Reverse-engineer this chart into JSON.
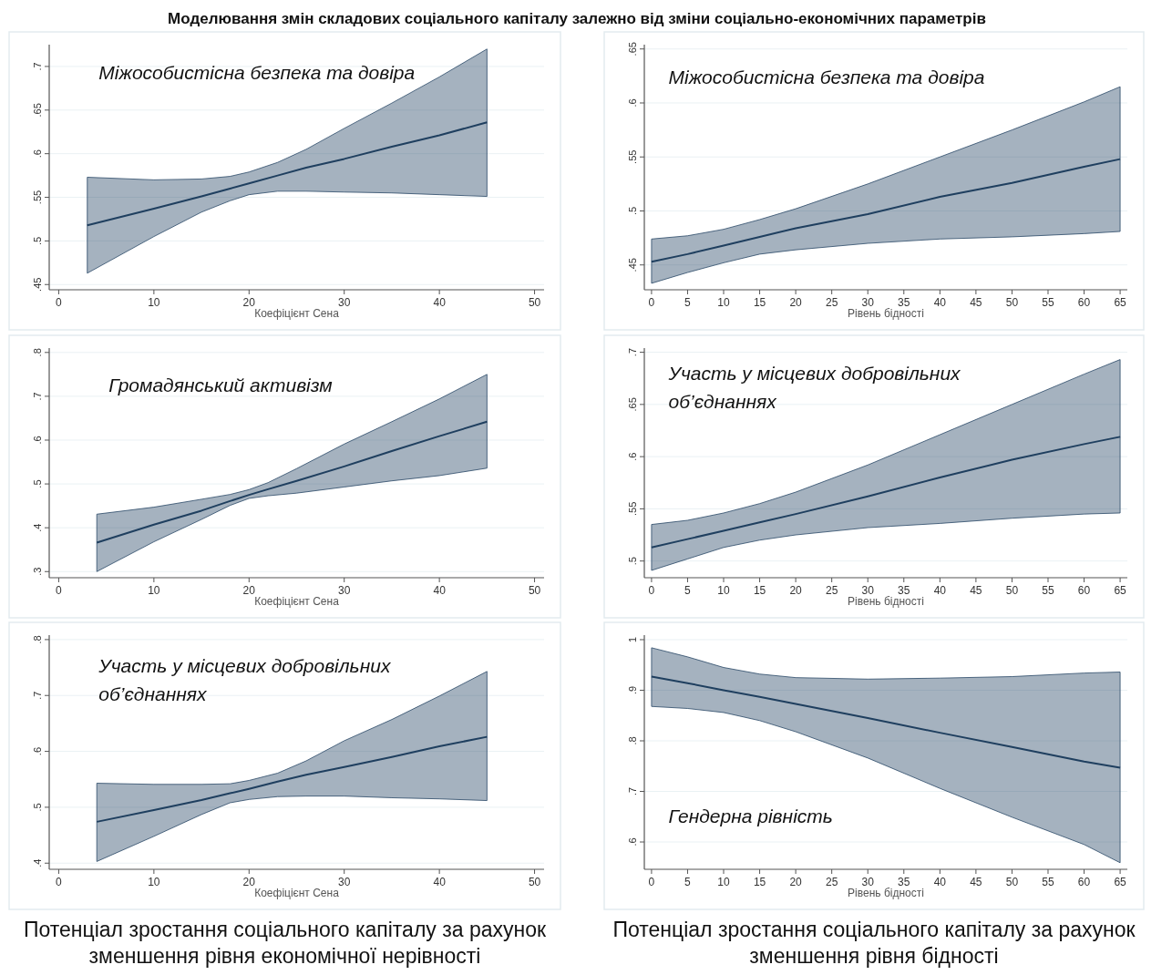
{
  "chart_data": [
    {
      "type": "line",
      "title": "Моделювання змін складових соціального капіталу залежно від зміни соціально-економічних параметрів",
      "xlabel": "Коефіцієнт Сена",
      "xlim": [
        -1,
        51
      ],
      "xticks": [
        0,
        10,
        20,
        30,
        40,
        50
      ],
      "ylim": [
        0.444,
        0.725
      ],
      "yticks": [
        {
          "value": 0.45,
          "label": ".45"
        },
        {
          "value": 0.5,
          "label": ".5"
        },
        {
          "value": 0.55,
          "label": ".55"
        },
        {
          "value": 0.6,
          "label": ".6"
        },
        {
          "value": 0.65,
          "label": ".65"
        },
        {
          "value": 0.7,
          "label": ".7"
        }
      ],
      "grid": "y",
      "annotations": [
        "Міжособистісна безпека та довіра"
      ],
      "series": [
        {
          "color": "#1f3f5f",
          "x": [
            3,
            10,
            15,
            18,
            20,
            23,
            26,
            30,
            35,
            40,
            45
          ],
          "values": [
            0.518,
            0.537,
            0.551,
            0.56,
            0.566,
            0.575,
            0.584,
            0.594,
            0.608,
            0.621,
            0.636
          ],
          "upper": [
            0.573,
            0.57,
            0.571,
            0.574,
            0.579,
            0.59,
            0.605,
            0.629,
            0.658,
            0.688,
            0.72
          ],
          "lower": [
            0.463,
            0.505,
            0.533,
            0.546,
            0.553,
            0.557,
            0.557,
            0.556,
            0.555,
            0.553,
            0.551
          ]
        }
      ]
    },
    {
      "type": "line",
      "xlabel": "Рівень бідності",
      "xlim": [
        -1,
        66
      ],
      "xticks": [
        0,
        5,
        10,
        15,
        20,
        25,
        30,
        35,
        40,
        45,
        50,
        55,
        60,
        65
      ],
      "ylim": [
        0.427,
        0.654
      ],
      "yticks": [
        {
          "value": 0.45,
          "label": ".45"
        },
        {
          "value": 0.5,
          "label": ".5"
        },
        {
          "value": 0.55,
          "label": ".55"
        },
        {
          "value": 0.6,
          "label": ".6"
        },
        {
          "value": 0.65,
          "label": ".65"
        }
      ],
      "grid": "y",
      "annotations": [
        "Міжособистісна безпека та довіра"
      ],
      "series": [
        {
          "color": "#1f3f5f",
          "x": [
            0,
            5,
            10,
            15,
            20,
            30,
            40,
            50,
            60,
            65
          ],
          "values": [
            0.453,
            0.46,
            0.468,
            0.476,
            0.484,
            0.497,
            0.513,
            0.526,
            0.541,
            0.548
          ],
          "upper": [
            0.474,
            0.477,
            0.483,
            0.492,
            0.502,
            0.525,
            0.55,
            0.575,
            0.601,
            0.615
          ],
          "lower": [
            0.433,
            0.443,
            0.452,
            0.46,
            0.464,
            0.47,
            0.474,
            0.476,
            0.479,
            0.481
          ]
        }
      ]
    },
    {
      "type": "line",
      "xlabel": "Коефіцієнт Сена",
      "xlim": [
        -1,
        51
      ],
      "xticks": [
        0,
        10,
        20,
        30,
        40,
        50
      ],
      "ylim": [
        0.286,
        0.81
      ],
      "yticks": [
        {
          "value": 0.3,
          "label": ".3"
        },
        {
          "value": 0.4,
          "label": ".4"
        },
        {
          "value": 0.5,
          "label": ".5"
        },
        {
          "value": 0.6,
          "label": ".6"
        },
        {
          "value": 0.7,
          "label": ".7"
        },
        {
          "value": 0.8,
          "label": ".8"
        }
      ],
      "grid": "y",
      "annotations": [
        "Громадянський активізм"
      ],
      "series": [
        {
          "color": "#1f3f5f",
          "x": [
            4,
            10,
            15,
            18,
            20,
            22,
            25,
            30,
            35,
            40,
            45
          ],
          "values": [
            0.366,
            0.407,
            0.439,
            0.461,
            0.475,
            0.488,
            0.507,
            0.54,
            0.575,
            0.609,
            0.642
          ],
          "upper": [
            0.431,
            0.447,
            0.465,
            0.476,
            0.487,
            0.503,
            0.535,
            0.591,
            0.642,
            0.694,
            0.75
          ],
          "lower": [
            0.3,
            0.368,
            0.419,
            0.451,
            0.467,
            0.473,
            0.479,
            0.493,
            0.507,
            0.519,
            0.536
          ]
        }
      ]
    },
    {
      "type": "line",
      "xlabel": "Рівень бідності",
      "xlim": [
        -1,
        66
      ],
      "xticks": [
        0,
        5,
        10,
        15,
        20,
        25,
        30,
        35,
        40,
        45,
        50,
        55,
        60,
        65
      ],
      "ylim": [
        0.484,
        0.704
      ],
      "yticks": [
        {
          "value": 0.5,
          "label": ".5"
        },
        {
          "value": 0.55,
          "label": ".55"
        },
        {
          "value": 0.6,
          "label": ".6"
        },
        {
          "value": 0.65,
          "label": ".65"
        },
        {
          "value": 0.7,
          "label": ".7"
        }
      ],
      "grid": "y",
      "annotations": [
        "Участь у місцевих добровільних об’єднаннях"
      ],
      "series": [
        {
          "color": "#1f3f5f",
          "x": [
            0,
            5,
            10,
            15,
            20,
            30,
            40,
            50,
            60,
            65
          ],
          "values": [
            0.513,
            0.521,
            0.529,
            0.537,
            0.545,
            0.562,
            0.58,
            0.597,
            0.612,
            0.619
          ],
          "upper": [
            0.535,
            0.539,
            0.546,
            0.555,
            0.566,
            0.592,
            0.621,
            0.65,
            0.679,
            0.693
          ],
          "lower": [
            0.491,
            0.502,
            0.513,
            0.52,
            0.525,
            0.532,
            0.536,
            0.541,
            0.545,
            0.546
          ]
        }
      ]
    },
    {
      "type": "line",
      "xlabel": "Коефіцієнт Сена",
      "xlim": [
        -1,
        51
      ],
      "xticks": [
        0,
        10,
        20,
        30,
        40,
        50
      ],
      "ylim": [
        0.389,
        0.808
      ],
      "yticks": [
        {
          "value": 0.4,
          "label": ".4"
        },
        {
          "value": 0.5,
          "label": ".5"
        },
        {
          "value": 0.6,
          "label": ".6"
        },
        {
          "value": 0.7,
          "label": ".7"
        },
        {
          "value": 0.8,
          "label": ".8"
        }
      ],
      "grid": "y",
      "annotations": [
        "Участь у місцевих добровільних об’єднаннях",
        "Потенціал зростання соціального капіталу за рахунок зменшення рівня економічної нерівності"
      ],
      "series": [
        {
          "color": "#1f3f5f",
          "x": [
            4,
            10,
            15,
            18,
            20,
            23,
            26,
            30,
            35,
            40,
            45
          ],
          "values": [
            0.474,
            0.495,
            0.513,
            0.525,
            0.533,
            0.546,
            0.558,
            0.572,
            0.59,
            0.609,
            0.626
          ],
          "upper": [
            0.543,
            0.541,
            0.541,
            0.542,
            0.548,
            0.561,
            0.583,
            0.619,
            0.657,
            0.699,
            0.743
          ],
          "lower": [
            0.403,
            0.448,
            0.487,
            0.508,
            0.514,
            0.519,
            0.52,
            0.52,
            0.517,
            0.515,
            0.512
          ]
        }
      ]
    },
    {
      "type": "line",
      "xlabel": "Рівень бідності",
      "xlim": [
        -1,
        66
      ],
      "xticks": [
        0,
        5,
        10,
        15,
        20,
        25,
        30,
        35,
        40,
        45,
        50,
        55,
        60,
        65
      ],
      "ylim": [
        0.546,
        1.009
      ],
      "yticks": [
        {
          "value": 0.6,
          "label": ".6"
        },
        {
          "value": 0.7,
          "label": ".7"
        },
        {
          "value": 0.8,
          "label": ".8"
        },
        {
          "value": 0.9,
          "label": ".9"
        },
        {
          "value": 1,
          "label": "1"
        }
      ],
      "grid": "y",
      "annotations": [
        "Гендерна рівність",
        "Потенціал зростання соціального капіталу за рахунок зменшення рівня бідності"
      ],
      "series": [
        {
          "color": "#1f3f5f",
          "x": [
            0,
            5,
            10,
            15,
            20,
            30,
            40,
            50,
            60,
            65
          ],
          "values": [
            0.927,
            0.914,
            0.9,
            0.887,
            0.873,
            0.845,
            0.816,
            0.788,
            0.759,
            0.747
          ],
          "upper": [
            0.984,
            0.966,
            0.945,
            0.932,
            0.925,
            0.922,
            0.924,
            0.927,
            0.934,
            0.936
          ],
          "lower": [
            0.868,
            0.864,
            0.856,
            0.84,
            0.818,
            0.766,
            0.706,
            0.649,
            0.595,
            0.559
          ]
        }
      ]
    }
  ]
}
